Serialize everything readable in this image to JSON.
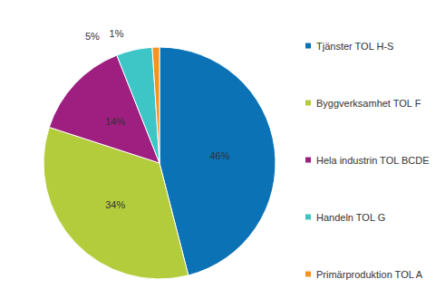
{
  "chart_data": {
    "type": "pie",
    "categories": [
      "Tjänster TOL H-S",
      "Byggverksamhet TOL F",
      "Hela industrin TOL BCDE",
      "Handeln TOL G",
      "Primärproduktion TOL A"
    ],
    "values": [
      46,
      34,
      14,
      5,
      1
    ],
    "value_labels": [
      "46%",
      "34%",
      "14%",
      "5%",
      "1%"
    ],
    "colors": [
      "#0a72b5",
      "#b3cc3c",
      "#9e1f80",
      "#3ec6c6",
      "#f6921e"
    ],
    "data_labels": true,
    "legend": "right"
  }
}
